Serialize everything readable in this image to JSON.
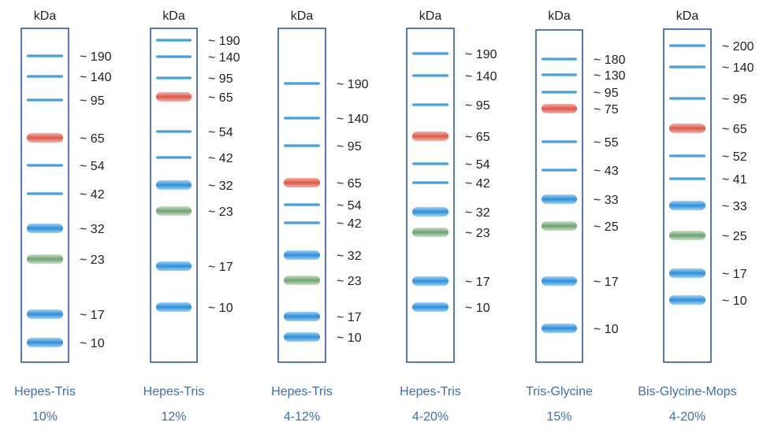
{
  "unit_label": "kDa",
  "colors": {
    "frame": "#2f56a6",
    "caption": "#3a6fb5",
    "blue": "#2b8fdc",
    "red": "#e0574a",
    "green": "#6ea36e",
    "text": "#222222"
  },
  "ladders": [
    {
      "name": "Hepes-Tris",
      "gel": "10%",
      "bands": [
        {
          "kda": 190,
          "label": "~ 190",
          "color": "blue",
          "weight": "thin"
        },
        {
          "kda": 140,
          "label": "~ 140",
          "color": "blue",
          "weight": "thin"
        },
        {
          "kda": 95,
          "label": "~ 95",
          "color": "blue",
          "weight": "thin"
        },
        {
          "kda": 65,
          "label": "~ 65",
          "color": "red",
          "weight": "thick"
        },
        {
          "kda": 54,
          "label": "~ 54",
          "color": "blue",
          "weight": "thin"
        },
        {
          "kda": 42,
          "label": "~ 42",
          "color": "blue",
          "weight": "thin"
        },
        {
          "kda": 32,
          "label": "~ 32",
          "color": "blue",
          "weight": "thick"
        },
        {
          "kda": 23,
          "label": "~ 23",
          "color": "green",
          "weight": "thick"
        },
        {
          "kda": 17,
          "label": "~ 17",
          "color": "blue",
          "weight": "thick"
        },
        {
          "kda": 10,
          "label": "~ 10",
          "color": "blue",
          "weight": "thick"
        }
      ]
    },
    {
      "name": "Hepes-Tris",
      "gel": "12%",
      "bands": [
        {
          "kda": 190,
          "label": "~ 190",
          "color": "blue",
          "weight": "thin"
        },
        {
          "kda": 140,
          "label": "~ 140",
          "color": "blue",
          "weight": "thin"
        },
        {
          "kda": 95,
          "label": "~ 95",
          "color": "blue",
          "weight": "thin"
        },
        {
          "kda": 65,
          "label": "~ 65",
          "color": "red",
          "weight": "thick"
        },
        {
          "kda": 54,
          "label": "~ 54",
          "color": "blue",
          "weight": "thin"
        },
        {
          "kda": 42,
          "label": "~ 42",
          "color": "blue",
          "weight": "thin"
        },
        {
          "kda": 32,
          "label": "~ 32",
          "color": "blue",
          "weight": "thick"
        },
        {
          "kda": 23,
          "label": "~ 23",
          "color": "green",
          "weight": "thick"
        },
        {
          "kda": 17,
          "label": "~ 17",
          "color": "blue",
          "weight": "thick"
        },
        {
          "kda": 10,
          "label": "~ 10",
          "color": "blue",
          "weight": "thick"
        }
      ]
    },
    {
      "name": "Hepes-Tris",
      "gel": "4-12%",
      "bands": [
        {
          "kda": 190,
          "label": "~ 190",
          "color": "blue",
          "weight": "thin"
        },
        {
          "kda": 140,
          "label": "~ 140",
          "color": "blue",
          "weight": "thin"
        },
        {
          "kda": 95,
          "label": "~ 95",
          "color": "blue",
          "weight": "thin"
        },
        {
          "kda": 65,
          "label": "~ 65",
          "color": "red",
          "weight": "thick"
        },
        {
          "kda": 54,
          "label": "~ 54",
          "color": "blue",
          "weight": "thin"
        },
        {
          "kda": 42,
          "label": "~ 42",
          "color": "blue",
          "weight": "thin"
        },
        {
          "kda": 32,
          "label": "~ 32",
          "color": "blue",
          "weight": "thick"
        },
        {
          "kda": 23,
          "label": "~ 23",
          "color": "green",
          "weight": "thick"
        },
        {
          "kda": 17,
          "label": "~ 17",
          "color": "blue",
          "weight": "thick"
        },
        {
          "kda": 10,
          "label": "~ 10",
          "color": "blue",
          "weight": "thick"
        }
      ]
    },
    {
      "name": "Hepes-Tris",
      "gel": "4-20%",
      "bands": [
        {
          "kda": 190,
          "label": "~ 190",
          "color": "blue",
          "weight": "thin"
        },
        {
          "kda": 140,
          "label": "~ 140",
          "color": "blue",
          "weight": "thin"
        },
        {
          "kda": 95,
          "label": "~ 95",
          "color": "blue",
          "weight": "thin"
        },
        {
          "kda": 65,
          "label": "~ 65",
          "color": "red",
          "weight": "thick"
        },
        {
          "kda": 54,
          "label": "~ 54",
          "color": "blue",
          "weight": "thin"
        },
        {
          "kda": 42,
          "label": "~ 42",
          "color": "blue",
          "weight": "thin"
        },
        {
          "kda": 32,
          "label": "~ 32",
          "color": "blue",
          "weight": "thick"
        },
        {
          "kda": 23,
          "label": "~ 23",
          "color": "green",
          "weight": "thick"
        },
        {
          "kda": 17,
          "label": "~ 17",
          "color": "blue",
          "weight": "thick"
        },
        {
          "kda": 10,
          "label": "~ 10",
          "color": "blue",
          "weight": "thick"
        }
      ]
    },
    {
      "name": "Tris-Glycine",
      "gel": "15%",
      "bands": [
        {
          "kda": 180,
          "label": "~ 180",
          "color": "blue",
          "weight": "thin"
        },
        {
          "kda": 130,
          "label": "~ 130",
          "color": "blue",
          "weight": "thin"
        },
        {
          "kda": 95,
          "label": "~ 95",
          "color": "blue",
          "weight": "thin"
        },
        {
          "kda": 75,
          "label": "~ 75",
          "color": "red",
          "weight": "thick"
        },
        {
          "kda": 55,
          "label": "~ 55",
          "color": "blue",
          "weight": "thin"
        },
        {
          "kda": 43,
          "label": "~ 43",
          "color": "blue",
          "weight": "thin"
        },
        {
          "kda": 33,
          "label": "~ 33",
          "color": "blue",
          "weight": "thick"
        },
        {
          "kda": 25,
          "label": "~ 25",
          "color": "green",
          "weight": "thick"
        },
        {
          "kda": 17,
          "label": "~ 17",
          "color": "blue",
          "weight": "thick"
        },
        {
          "kda": 10,
          "label": "~ 10",
          "color": "blue",
          "weight": "thick"
        }
      ]
    },
    {
      "name": "Bis-Glycine-Mops",
      "gel": "4-20%",
      "bands": [
        {
          "kda": 200,
          "label": "~ 200",
          "color": "blue",
          "weight": "thin"
        },
        {
          "kda": 140,
          "label": "~ 140",
          "color": "blue",
          "weight": "thin"
        },
        {
          "kda": 95,
          "label": "~ 95",
          "color": "blue",
          "weight": "thin"
        },
        {
          "kda": 65,
          "label": "~ 65",
          "color": "red",
          "weight": "thick"
        },
        {
          "kda": 52,
          "label": "~ 52",
          "color": "blue",
          "weight": "thin"
        },
        {
          "kda": 41,
          "label": "~ 41",
          "color": "blue",
          "weight": "thin"
        },
        {
          "kda": 33,
          "label": "~ 33",
          "color": "blue",
          "weight": "thick"
        },
        {
          "kda": 25,
          "label": "~ 25",
          "color": "green",
          "weight": "thick"
        },
        {
          "kda": 17,
          "label": "~ 17",
          "color": "blue",
          "weight": "thick"
        },
        {
          "kda": 10,
          "label": "~ 10",
          "color": "blue",
          "weight": "thick"
        }
      ]
    }
  ]
}
